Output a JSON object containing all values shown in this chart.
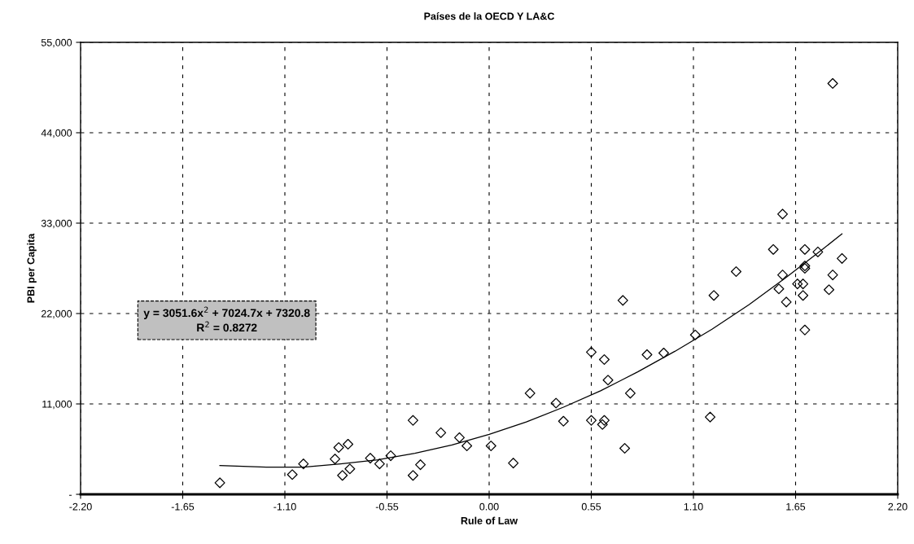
{
  "chart_data": {
    "type": "scatter",
    "title": "Países de la OECD Y LA&C",
    "xlabel": "Rule of Law",
    "ylabel": "PBI per Capita",
    "xlim": [
      -2.2,
      2.2
    ],
    "ylim": [
      0,
      55000
    ],
    "xticks": [
      {
        "value": -2.2,
        "label": "-2.20"
      },
      {
        "value": -1.65,
        "label": "-1.65"
      },
      {
        "value": -1.1,
        "label": "-1.10"
      },
      {
        "value": -0.55,
        "label": "-0.55"
      },
      {
        "value": 0,
        "label": "0.00"
      },
      {
        "value": 0.55,
        "label": "0.55"
      },
      {
        "value": 1.1,
        "label": "1.10"
      },
      {
        "value": 1.65,
        "label": "1.65"
      },
      {
        "value": 2.2,
        "label": "2.20"
      }
    ],
    "yticks": [
      {
        "value": 0,
        "label": "-"
      },
      {
        "value": 11000,
        "label": "11,000"
      },
      {
        "value": 22000,
        "label": "22,000"
      },
      {
        "value": 33000,
        "label": "33,000"
      },
      {
        "value": 44000,
        "label": "44,000"
      },
      {
        "value": 55000,
        "label": "55,000"
      }
    ],
    "grid": true,
    "marker": "diamond",
    "legend": false,
    "series": [
      {
        "color": "#000000",
        "x": [
          -1.45,
          -1.06,
          -1.0,
          -0.83,
          -0.81,
          -0.76,
          -0.79,
          -0.75,
          -0.64,
          -0.59,
          -0.53,
          -0.41,
          -0.41,
          -0.37,
          -0.26,
          -0.16,
          -0.12,
          0.01,
          0.13,
          0.22,
          0.36,
          0.4,
          0.55,
          0.61,
          0.62,
          0.73,
          0.76,
          0.64,
          0.62,
          0.55,
          0.72,
          0.85,
          0.94,
          1.11,
          1.19,
          1.21,
          1.33,
          1.53,
          1.58,
          1.56,
          1.6,
          1.66,
          1.69,
          1.69,
          1.7,
          1.7,
          1.7,
          1.77,
          1.83,
          1.85,
          1.9,
          1.7,
          1.85,
          1.58
        ],
        "values": [
          1400,
          2400,
          3700,
          4300,
          5700,
          6100,
          2300,
          3100,
          4400,
          3700,
          4700,
          9000,
          2300,
          3600,
          7500,
          6900,
          5900,
          5900,
          3800,
          12300,
          11100,
          8900,
          9000,
          8500,
          9000,
          5600,
          12300,
          13900,
          16400,
          17300,
          23600,
          17000,
          17200,
          19400,
          9400,
          24200,
          27100,
          29800,
          26700,
          25000,
          23400,
          25600,
          25600,
          24200,
          29800,
          27800,
          27500,
          29500,
          24900,
          26700,
          28700,
          20000,
          50000,
          34100
        ]
      },
      {
        "type": "line",
        "color": "#000000",
        "marker": "none",
        "x": [
          -1.45,
          -1.2,
          -1.0,
          -0.8,
          -0.6,
          -0.4,
          -0.2,
          0,
          0.2,
          0.4,
          0.6,
          0.8,
          1.0,
          1.2,
          1.4,
          1.6,
          1.8,
          1.9
        ],
        "values": [
          3500,
          3300,
          3300,
          3700,
          4200,
          5000,
          6000,
          7300,
          8800,
          10600,
          12600,
          14900,
          17400,
          20100,
          23100,
          26400,
          29900,
          31700
        ]
      }
    ],
    "annotations": [
      "y = 3051.6x$^{2}$ + 7024.7x + 7320.8",
      "R$^{2}$ = 0.8272"
    ]
  }
}
